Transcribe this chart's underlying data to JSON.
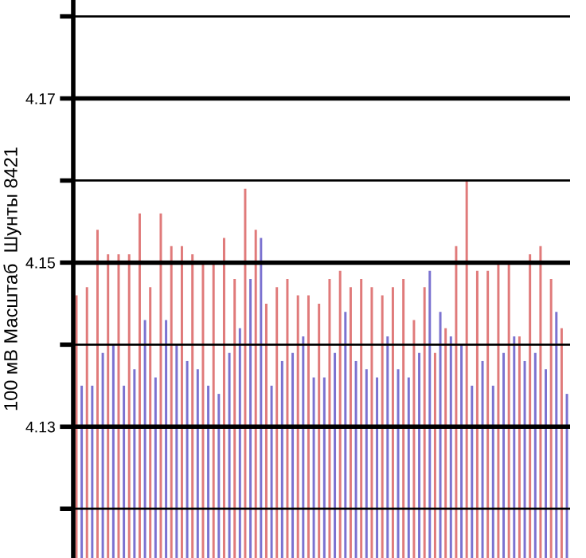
{
  "chart_data": {
    "type": "bar",
    "ylabel": "100 мВ Масштаб  Шунты 8421",
    "categories": [
      null,
      null,
      null,
      null,
      null,
      null,
      null,
      null,
      null,
      null,
      null,
      null,
      null,
      null,
      null,
      null,
      null,
      null,
      null,
      null,
      null,
      null,
      null,
      null,
      null,
      null,
      null,
      null,
      null,
      null,
      null,
      null,
      null,
      null,
      null,
      null,
      null,
      null,
      null,
      null,
      null,
      null,
      null,
      null,
      null,
      null,
      null
    ],
    "series": [
      {
        "color": "#e07a7a",
        "values": [
          4.146,
          4.147,
          4.154,
          4.151,
          4.151,
          4.151,
          4.156,
          4.147,
          4.156,
          4.152,
          4.152,
          4.151,
          4.15,
          4.15,
          4.153,
          4.148,
          4.159,
          4.154,
          4.145,
          4.147,
          4.148,
          4.146,
          4.146,
          4.145,
          4.148,
          4.149,
          4.147,
          4.148,
          4.147,
          4.146,
          4.147,
          4.148,
          4.143,
          4.147,
          4.139,
          4.142,
          4.152,
          4.16,
          4.149,
          4.149,
          4.15,
          4.15,
          4.141,
          4.151,
          4.152,
          4.148,
          4.142
        ]
      },
      {
        "color": "#7b72d0",
        "values": [
          4.135,
          4.135,
          4.139,
          4.14,
          4.135,
          4.137,
          4.143,
          4.136,
          4.143,
          4.14,
          4.138,
          4.137,
          4.135,
          4.134,
          4.139,
          4.142,
          4.148,
          4.153,
          4.135,
          4.138,
          4.139,
          4.141,
          4.136,
          4.136,
          4.139,
          4.144,
          4.138,
          4.137,
          4.136,
          4.141,
          4.137,
          4.136,
          4.139,
          4.149,
          4.144,
          4.141,
          4.14,
          4.135,
          4.138,
          4.135,
          4.139,
          4.141,
          4.138,
          4.139,
          4.137,
          4.144,
          4.134
        ]
      }
    ],
    "ylim": [
      4.114,
      4.182
    ],
    "yticks": [
      {
        "value": 4.12,
        "label": null
      },
      4.13,
      {
        "value": 4.14,
        "label": null
      },
      4.15,
      {
        "value": 4.16,
        "label": null
      },
      4.17,
      {
        "value": 4.18,
        "label": null
      }
    ],
    "grid": "y",
    "tick_labels": "y"
  }
}
